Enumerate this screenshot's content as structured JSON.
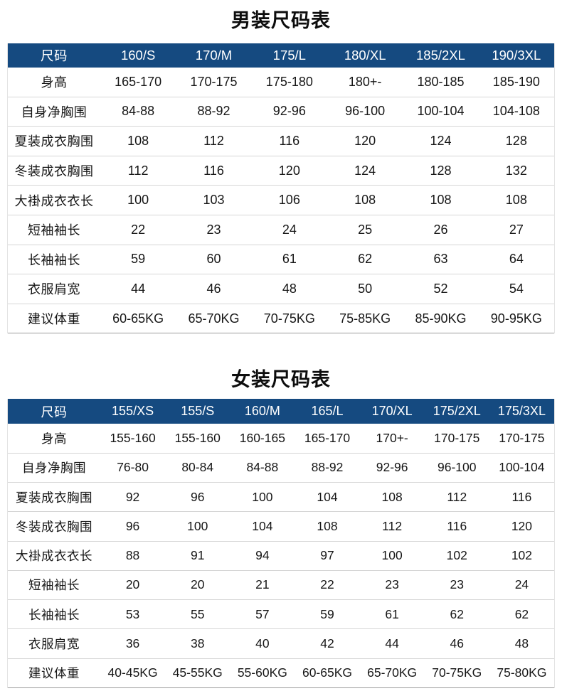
{
  "colors": {
    "header_bg": "#154a80",
    "header_text": "#ffffff",
    "body_text": "#161616",
    "row_divider": "#d6d6d6",
    "table_bottom_border": "#9c9c9c",
    "page_bg": "#ffffff"
  },
  "chart_data": [
    {
      "type": "table",
      "title": "男装尺码表",
      "columns": [
        "尺码",
        "160/S",
        "170/M",
        "175/L",
        "180/XL",
        "185/2XL",
        "190/3XL"
      ],
      "rows": [
        [
          "身高",
          "165-170",
          "170-175",
          "175-180",
          "180+-",
          "180-185",
          "185-190"
        ],
        [
          "自身净胸围",
          "84-88",
          "88-92",
          "92-96",
          "96-100",
          "100-104",
          "104-108"
        ],
        [
          "夏装成衣胸围",
          "108",
          "112",
          "116",
          "120",
          "124",
          "128"
        ],
        [
          "冬装成衣胸围",
          "112",
          "116",
          "120",
          "124",
          "128",
          "132"
        ],
        [
          "大褂成衣衣长",
          "100",
          "103",
          "106",
          "108",
          "108",
          "108"
        ],
        [
          "短袖袖长",
          "22",
          "23",
          "24",
          "25",
          "26",
          "27"
        ],
        [
          "长袖袖长",
          "59",
          "60",
          "61",
          "62",
          "63",
          "64"
        ],
        [
          "衣服肩宽",
          "44",
          "46",
          "48",
          "50",
          "52",
          "54"
        ],
        [
          "建议体重",
          "60-65KG",
          "65-70KG",
          "70-75KG",
          "75-85KG",
          "85-90KG",
          "90-95KG"
        ]
      ]
    },
    {
      "type": "table",
      "title": "女装尺码表",
      "columns": [
        "尺码",
        "155/XS",
        "155/S",
        "160/M",
        "165/L",
        "170/XL",
        "175/2XL",
        "175/3XL"
      ],
      "rows": [
        [
          "身高",
          "155-160",
          "155-160",
          "160-165",
          "165-170",
          "170+-",
          "170-175",
          "170-175"
        ],
        [
          "自身净胸围",
          "76-80",
          "80-84",
          "84-88",
          "88-92",
          "92-96",
          "96-100",
          "100-104"
        ],
        [
          "夏装成衣胸围",
          "92",
          "96",
          "100",
          "104",
          "108",
          "112",
          "116"
        ],
        [
          "冬装成衣胸围",
          "96",
          "100",
          "104",
          "108",
          "112",
          "116",
          "120"
        ],
        [
          "大褂成衣衣长",
          "88",
          "91",
          "94",
          "97",
          "100",
          "102",
          "102"
        ],
        [
          "短袖袖长",
          "20",
          "20",
          "21",
          "22",
          "23",
          "23",
          "24"
        ],
        [
          "长袖袖长",
          "53",
          "55",
          "57",
          "59",
          "61",
          "62",
          "62"
        ],
        [
          "衣服肩宽",
          "36",
          "38",
          "40",
          "42",
          "44",
          "46",
          "48"
        ],
        [
          "建议体重",
          "40-45KG",
          "45-55KG",
          "55-60KG",
          "60-65KG",
          "65-70KG",
          "70-75KG",
          "75-80KG"
        ]
      ]
    }
  ]
}
